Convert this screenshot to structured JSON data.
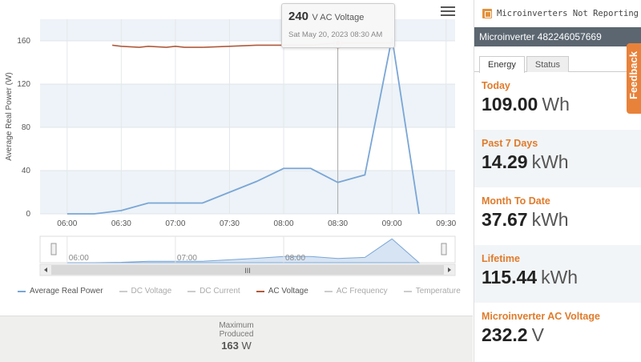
{
  "chart_data": {
    "type": "line",
    "title": "",
    "ylabel": "Average Real Power (W)",
    "xlabel": "",
    "x_ticks": [
      "06:00",
      "06:30",
      "07:00",
      "07:30",
      "08:00",
      "08:30",
      "09:00",
      "09:30"
    ],
    "y_ticks": [
      0,
      40,
      80,
      120,
      160
    ],
    "ylim": [
      0,
      180
    ],
    "xlim": [
      "05:45",
      "09:35"
    ],
    "grid": true,
    "series": [
      {
        "name": "Average Real Power",
        "color": "#7aa6d6",
        "x": [
          "06:00",
          "06:15",
          "06:30",
          "06:45",
          "07:00",
          "07:15",
          "07:30",
          "07:45",
          "08:00",
          "08:15",
          "08:30",
          "08:45",
          "09:00",
          "09:15"
        ],
        "values": [
          0,
          0,
          3,
          10,
          10,
          10,
          20,
          30,
          42,
          42,
          29,
          36,
          163,
          0
        ]
      },
      {
        "name": "AC Voltage",
        "color": "#b05a3c",
        "x": [
          "06:25",
          "06:30",
          "06:40",
          "06:45",
          "06:55",
          "07:00",
          "07:05",
          "07:15",
          "07:30",
          "07:45",
          "08:00",
          "08:15",
          "08:30",
          "08:45",
          "09:00"
        ],
        "values": [
          156,
          155,
          154,
          155,
          154,
          155,
          154,
          154,
          155,
          156,
          156,
          156,
          158,
          158,
          158
        ]
      }
    ],
    "navigator": {
      "x_ticks": [
        "06:00",
        "07:00",
        "08:00"
      ],
      "scroll_label": "III"
    },
    "legend": {
      "placement": "bottom",
      "items": [
        {
          "name": "Average Real Power",
          "active": true,
          "color": "#7aa6d6"
        },
        {
          "name": "DC Voltage",
          "active": false,
          "color": "#cccccc"
        },
        {
          "name": "DC Current",
          "active": false,
          "color": "#cccccc"
        },
        {
          "name": "AC Voltage",
          "active": true,
          "color": "#b05a3c"
        },
        {
          "name": "AC Frequency",
          "active": false,
          "color": "#cccccc"
        },
        {
          "name": "Temperature",
          "active": false,
          "color": "#cccccc"
        }
      ]
    }
  },
  "tooltip": {
    "value": "240",
    "unit": "V AC Voltage",
    "date": "Sat May 20, 2023 08:30 AM"
  },
  "max_produced": {
    "label": "Maximum Produced",
    "value": "163",
    "unit": "W"
  },
  "side": {
    "alert": "Microinverters Not Reporting",
    "microinverter": "Microinverter 482246057669",
    "tabs": [
      {
        "label": "Energy",
        "active": true
      },
      {
        "label": "Status",
        "active": false
      }
    ],
    "stats": [
      {
        "label": "Today",
        "value": "109.00",
        "unit": "Wh"
      },
      {
        "label": "Past 7 Days",
        "value": "14.29",
        "unit": "kWh"
      },
      {
        "label": "Month To Date",
        "value": "37.67",
        "unit": "kWh"
      },
      {
        "label": "Lifetime",
        "value": "115.44",
        "unit": "kWh"
      },
      {
        "label": "Microinverter AC Voltage",
        "value": "232.2",
        "unit": "V"
      }
    ],
    "feedback": "Feedback"
  },
  "colors": {
    "accent": "#e07b2b",
    "header_bg": "#5b6670"
  }
}
